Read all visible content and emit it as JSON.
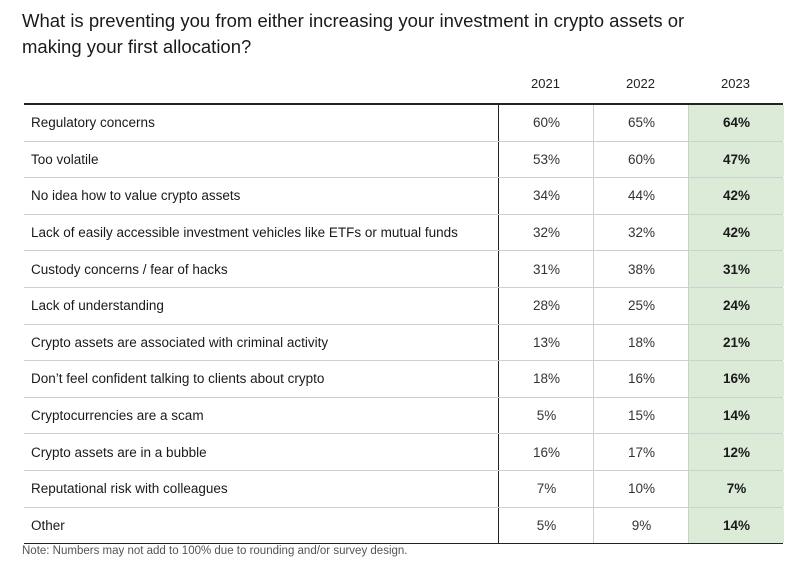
{
  "title": "What is preventing you from either increasing your investment in crypto assets or making your first allocation?",
  "note": "Note: Numbers may not add to 100% due to rounding and/or survey design.",
  "colors": {
    "highlight_column": "#dcebd8",
    "rule": "#222222",
    "row_divider": "#cfcfcf"
  },
  "chart_data": {
    "type": "table",
    "title": "What is preventing you from either increasing your investment in crypto assets or making your first allocation?",
    "columns": [
      "2021",
      "2022",
      "2023"
    ],
    "highlight_column": "2023",
    "rows": [
      {
        "label": "Regulatory concerns",
        "values": [
          "60%",
          "65%",
          "64%"
        ]
      },
      {
        "label": "Too volatile",
        "values": [
          "53%",
          "60%",
          "47%"
        ]
      },
      {
        "label": "No idea how to value crypto assets",
        "values": [
          "34%",
          "44%",
          "42%"
        ]
      },
      {
        "label": "Lack of easily accessible investment vehicles like ETFs or mutual funds",
        "values": [
          "32%",
          "32%",
          "42%"
        ]
      },
      {
        "label": "Custody concerns / fear of hacks",
        "values": [
          "31%",
          "38%",
          "31%"
        ]
      },
      {
        "label": "Lack of understanding",
        "values": [
          "28%",
          "25%",
          "24%"
        ]
      },
      {
        "label": "Crypto assets are associated with criminal activity",
        "values": [
          "13%",
          "18%",
          "21%"
        ]
      },
      {
        "label": "Don’t feel confident talking to clients about crypto",
        "values": [
          "18%",
          "16%",
          "16%"
        ]
      },
      {
        "label": "Cryptocurrencies are a scam",
        "values": [
          "5%",
          "15%",
          "14%"
        ]
      },
      {
        "label": "Crypto assets are in a bubble",
        "values": [
          "16%",
          "17%",
          "12%"
        ]
      },
      {
        "label": "Reputational risk with colleagues",
        "values": [
          "7%",
          "10%",
          "7%"
        ]
      },
      {
        "label": "Other",
        "values": [
          "5%",
          "9%",
          "14%"
        ]
      }
    ]
  }
}
